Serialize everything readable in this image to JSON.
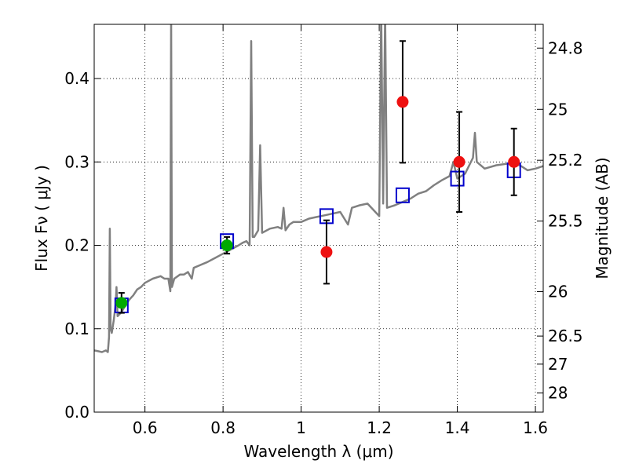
{
  "chart_data": {
    "type": "scatter",
    "xlabel": "Wavelength  λ (μm)",
    "ylabel": "Flux  Fν  ( μJy )",
    "ylabel_right": "Magnitude (AB)",
    "xlim": [
      0.47,
      1.62
    ],
    "ylim": [
      0.0,
      0.465
    ],
    "grid": true,
    "x_ticks": [
      0.6,
      0.8,
      1.0,
      1.2,
      1.4,
      1.6
    ],
    "x_tick_labels": [
      "0.6",
      "0.8",
      "1",
      "1.2",
      "1.4",
      "1.6"
    ],
    "y_ticks": [
      0.0,
      0.1,
      0.2,
      0.3,
      0.4
    ],
    "y_tick_labels": [
      "0.0",
      "0.1",
      "0.2",
      "0.3",
      "0.4"
    ],
    "mag_ticks": [
      24.8,
      25.0,
      25.2,
      25.5,
      26.0,
      26.5,
      27.0,
      28.0
    ],
    "mag_tick_labels": [
      "24.8",
      "25",
      "25.2",
      "25.5",
      "26",
      "26.5",
      "27",
      "28"
    ],
    "colors": {
      "spectrum": "#808080",
      "model_box": "#0000cc",
      "optical_point": "#00aa00",
      "nir_point": "#ee1111",
      "errorbar": "#000000"
    },
    "series": [
      {
        "kind": "spectrum",
        "points": [
          [
            0.47,
            0.074
          ],
          [
            0.48,
            0.073
          ],
          [
            0.49,
            0.072
          ],
          [
            0.5,
            0.074
          ],
          [
            0.505,
            0.072
          ],
          [
            0.508,
            0.09
          ],
          [
            0.51,
            0.22
          ],
          [
            0.512,
            0.1
          ],
          [
            0.515,
            0.095
          ],
          [
            0.52,
            0.11
          ],
          [
            0.525,
            0.13
          ],
          [
            0.527,
            0.15
          ],
          [
            0.53,
            0.115
          ],
          [
            0.54,
            0.12
          ],
          [
            0.55,
            0.128
          ],
          [
            0.56,
            0.135
          ],
          [
            0.57,
            0.14
          ],
          [
            0.58,
            0.147
          ],
          [
            0.59,
            0.15
          ],
          [
            0.6,
            0.155
          ],
          [
            0.62,
            0.16
          ],
          [
            0.64,
            0.163
          ],
          [
            0.65,
            0.16
          ],
          [
            0.66,
            0.16
          ],
          [
            0.665,
            0.145
          ],
          [
            0.667,
            0.48
          ],
          [
            0.669,
            0.15
          ],
          [
            0.675,
            0.16
          ],
          [
            0.69,
            0.165
          ],
          [
            0.7,
            0.165
          ],
          [
            0.71,
            0.168
          ],
          [
            0.72,
            0.16
          ],
          [
            0.725,
            0.173
          ],
          [
            0.74,
            0.176
          ],
          [
            0.76,
            0.18
          ],
          [
            0.78,
            0.185
          ],
          [
            0.8,
            0.19
          ],
          [
            0.82,
            0.195
          ],
          [
            0.84,
            0.2
          ],
          [
            0.85,
            0.203
          ],
          [
            0.86,
            0.205
          ],
          [
            0.868,
            0.2
          ],
          [
            0.872,
            0.445
          ],
          [
            0.876,
            0.21
          ],
          [
            0.88,
            0.21
          ],
          [
            0.89,
            0.218
          ],
          [
            0.895,
            0.32
          ],
          [
            0.9,
            0.215
          ],
          [
            0.92,
            0.22
          ],
          [
            0.94,
            0.222
          ],
          [
            0.95,
            0.22
          ],
          [
            0.955,
            0.245
          ],
          [
            0.96,
            0.218
          ],
          [
            0.97,
            0.225
          ],
          [
            0.98,
            0.228
          ],
          [
            1.0,
            0.228
          ],
          [
            1.02,
            0.232
          ],
          [
            1.04,
            0.234
          ],
          [
            1.06,
            0.236
          ],
          [
            1.08,
            0.238
          ],
          [
            1.1,
            0.24
          ],
          [
            1.12,
            0.225
          ],
          [
            1.13,
            0.245
          ],
          [
            1.15,
            0.248
          ],
          [
            1.17,
            0.25
          ],
          [
            1.19,
            0.24
          ],
          [
            1.2,
            0.235
          ],
          [
            1.205,
            0.48
          ],
          [
            1.21,
            0.25
          ],
          [
            1.215,
            0.48
          ],
          [
            1.22,
            0.245
          ],
          [
            1.24,
            0.248
          ],
          [
            1.26,
            0.252
          ],
          [
            1.28,
            0.256
          ],
          [
            1.3,
            0.262
          ],
          [
            1.32,
            0.265
          ],
          [
            1.34,
            0.272
          ],
          [
            1.36,
            0.278
          ],
          [
            1.38,
            0.283
          ],
          [
            1.39,
            0.3
          ],
          [
            1.4,
            0.28
          ],
          [
            1.42,
            0.286
          ],
          [
            1.44,
            0.305
          ],
          [
            1.445,
            0.335
          ],
          [
            1.45,
            0.3
          ],
          [
            1.47,
            0.292
          ],
          [
            1.5,
            0.296
          ],
          [
            1.53,
            0.298
          ],
          [
            1.56,
            0.296
          ],
          [
            1.58,
            0.29
          ],
          [
            1.6,
            0.292
          ],
          [
            1.62,
            0.295
          ]
        ]
      },
      {
        "kind": "model_boxes",
        "points": [
          [
            0.54,
            0.128
          ],
          [
            0.81,
            0.205
          ],
          [
            1.065,
            0.235
          ],
          [
            1.26,
            0.26
          ],
          [
            1.4,
            0.28
          ],
          [
            1.545,
            0.29
          ]
        ]
      },
      {
        "kind": "optical_points",
        "points": [
          [
            0.54,
            0.131,
            0.012
          ],
          [
            0.81,
            0.2,
            0.01
          ]
        ]
      },
      {
        "kind": "nir_points",
        "points": [
          [
            1.065,
            0.192,
            0.038
          ],
          [
            1.26,
            0.372,
            0.073
          ],
          [
            1.405,
            0.3,
            0.06
          ],
          [
            1.545,
            0.3,
            0.04
          ]
        ]
      }
    ]
  }
}
